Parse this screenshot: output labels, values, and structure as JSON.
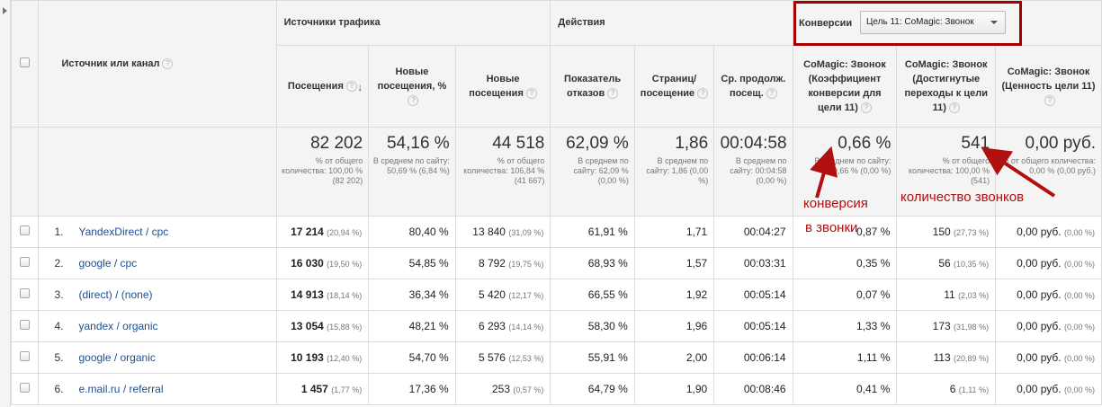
{
  "header": {
    "dimension_label": "Источник или канал",
    "groups": {
      "traffic": "Источники трафика",
      "actions": "Действия",
      "conversions": "Конверсии"
    },
    "goal_selector": "Цель 11: CoMagic: Звонок",
    "columns": {
      "sessions": "Посещения",
      "new_sessions_pct": "Новые посещения, %",
      "new_users": "Новые посещения",
      "bounce_rate": "Показатель отказов",
      "pages_per_session": "Страниц/ посещение",
      "avg_duration": "Ср. продолж. посещ.",
      "conv_rate": "CoMagic: Звонок (Коэффициент конверсии для цели 11)",
      "completions": "CoMagic: Звонок (Достигнутые переходы к цели 11)",
      "value": "CoMagic: Звонок (Ценность цели 11)"
    }
  },
  "totals": {
    "sessions": {
      "big": "82 202",
      "sub": "% от общего количества: 100,00 % (82 202)"
    },
    "new_sessions_pct": {
      "big": "54,16 %",
      "sub": "В среднем по сайту: 50,69 % (6,84 %)"
    },
    "new_users": {
      "big": "44 518",
      "sub": "% от общего количества: 106,84 % (41 667)"
    },
    "bounce_rate": {
      "big": "62,09 %",
      "sub": "В среднем по сайту: 62,09 % (0,00 %)"
    },
    "pages_per_session": {
      "big": "1,86",
      "sub": "В среднем по сайту: 1,86 (0,00 %)"
    },
    "avg_duration": {
      "big": "00:04:58",
      "sub": "В среднем по сайту: 00:04:58 (0,00 %)"
    },
    "conv_rate": {
      "big": "0,66 %",
      "sub": "В среднем по сайту: 0,66 % (0,00 %)"
    },
    "completions": {
      "big": "541",
      "sub": "% от общего количества: 100,00 % (541)"
    },
    "value": {
      "big": "0,00 руб.",
      "sub": "% от общего количества: 0,00 % (0,00 руб.)"
    }
  },
  "rows": [
    {
      "n": "1.",
      "source": "YandexDirect / cpc",
      "sessions": "17 214",
      "sessions_pct": "(20,94 %)",
      "new_pct": "80,40 %",
      "new_users": "13 840",
      "new_users_pct": "(31,09 %)",
      "bounce": "61,91 %",
      "pages": "1,71",
      "duration": "00:04:27",
      "conv": "0,87 %",
      "comp": "150",
      "comp_pct": "(27,73 %)",
      "value": "0,00 руб.",
      "value_pct": "(0,00 %)"
    },
    {
      "n": "2.",
      "source": "google / cpc",
      "sessions": "16 030",
      "sessions_pct": "(19,50 %)",
      "new_pct": "54,85 %",
      "new_users": "8 792",
      "new_users_pct": "(19,75 %)",
      "bounce": "68,93 %",
      "pages": "1,57",
      "duration": "00:03:31",
      "conv": "0,35 %",
      "comp": "56",
      "comp_pct": "(10,35 %)",
      "value": "0,00 руб.",
      "value_pct": "(0,00 %)"
    },
    {
      "n": "3.",
      "source": "(direct) / (none)",
      "sessions": "14 913",
      "sessions_pct": "(18,14 %)",
      "new_pct": "36,34 %",
      "new_users": "5 420",
      "new_users_pct": "(12,17 %)",
      "bounce": "66,55 %",
      "pages": "1,92",
      "duration": "00:05:14",
      "conv": "0,07 %",
      "comp": "11",
      "comp_pct": "(2,03 %)",
      "value": "0,00 руб.",
      "value_pct": "(0,00 %)"
    },
    {
      "n": "4.",
      "source": "yandex / organic",
      "sessions": "13 054",
      "sessions_pct": "(15,88 %)",
      "new_pct": "48,21 %",
      "new_users": "6 293",
      "new_users_pct": "(14,14 %)",
      "bounce": "58,30 %",
      "pages": "1,96",
      "duration": "00:05:14",
      "conv": "1,33 %",
      "comp": "173",
      "comp_pct": "(31,98 %)",
      "value": "0,00 руб.",
      "value_pct": "(0,00 %)"
    },
    {
      "n": "5.",
      "source": "google / organic",
      "sessions": "10 193",
      "sessions_pct": "(12,40 %)",
      "new_pct": "54,70 %",
      "new_users": "5 576",
      "new_users_pct": "(12,53 %)",
      "bounce": "55,91 %",
      "pages": "2,00",
      "duration": "00:06:14",
      "conv": "1,11 %",
      "comp": "113",
      "comp_pct": "(20,89 %)",
      "value": "0,00 руб.",
      "value_pct": "(0,00 %)"
    },
    {
      "n": "6.",
      "source": "e.mail.ru / referral",
      "sessions": "1 457",
      "sessions_pct": "(1,77 %)",
      "new_pct": "17,36 %",
      "new_users": "253",
      "new_users_pct": "(0,57 %)",
      "bounce": "64,79 %",
      "pages": "1,90",
      "duration": "00:08:46",
      "conv": "0,41 %",
      "comp": "6",
      "comp_pct": "(1,11 %)",
      "value": "0,00 руб.",
      "value_pct": "(0,00 %)"
    }
  ],
  "annotations": {
    "conv_note_line1": "конверсия",
    "conv_note_line2": "в звонки",
    "calls_note": "количество звонков",
    "color": "#b01010"
  }
}
